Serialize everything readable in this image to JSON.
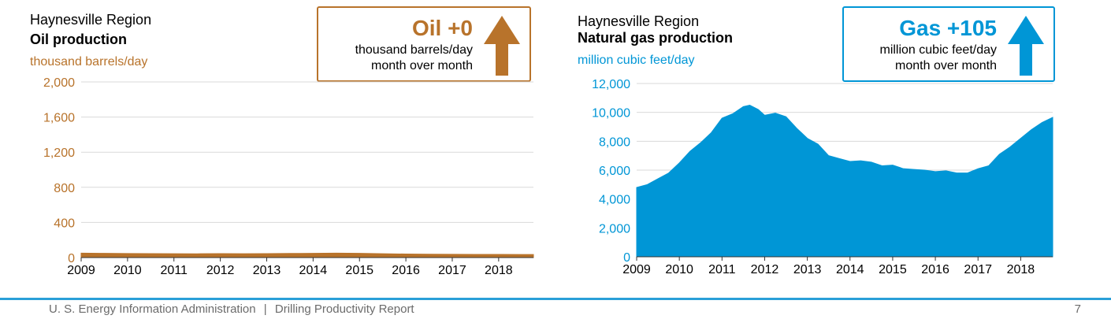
{
  "footer": {
    "agency": "U. S. Energy Information Administration",
    "separator": "|",
    "report": "Drilling Productivity Report",
    "page_number": "7",
    "line_color": "#2a9fd8"
  },
  "chart_data": [
    {
      "id": "oil",
      "type": "area",
      "region": "Haynesville Region",
      "title": "Oil production",
      "unit": "thousand barrels/day",
      "color": "#b8732b",
      "callout": {
        "value": "Oil +0",
        "line1": "thousand barrels/day",
        "line2": "month over month",
        "arrow": "up-arrow",
        "border_color": "#b8732b"
      },
      "yticks": [
        "2,000",
        "1,600",
        "1,200",
        "800",
        "400",
        "0"
      ],
      "ytick_values": [
        2000,
        1600,
        1200,
        800,
        400,
        0
      ],
      "ylim": [
        0,
        2000
      ],
      "xticks": [
        "2009",
        "2010",
        "2011",
        "2012",
        "2013",
        "2014",
        "2015",
        "2016",
        "2017",
        "2018"
      ],
      "xlim": [
        2009,
        2018.75
      ],
      "grid": true,
      "series": [
        {
          "x": [
            2009,
            2009.5,
            2010,
            2010.5,
            2011,
            2011.5,
            2012,
            2012.5,
            2013,
            2013.5,
            2014,
            2014.5,
            2015,
            2015.5,
            2016,
            2016.5,
            2017,
            2017.5,
            2018,
            2018.5,
            2018.75
          ],
          "values": [
            50,
            48,
            46,
            45,
            44,
            43,
            45,
            44,
            45,
            47,
            48,
            50,
            48,
            44,
            40,
            38,
            37,
            36,
            36,
            35,
            35
          ]
        }
      ]
    },
    {
      "id": "gas",
      "type": "area",
      "region": "Haynesville Region",
      "title": "Natural gas production",
      "unit": "million cubic feet/day",
      "color": "#0096d6",
      "callout": {
        "value": "Gas +105",
        "line1": "million cubic feet/day",
        "line2": "month over month",
        "arrow": "up-arrow",
        "border_color": "#0096d6"
      },
      "yticks": [
        "12,000",
        "10,000",
        "8,000",
        "6,000",
        "4,000",
        "2,000",
        "0"
      ],
      "ytick_values": [
        12000,
        10000,
        8000,
        6000,
        4000,
        2000,
        0
      ],
      "ylim": [
        0,
        12000
      ],
      "xticks": [
        "2009",
        "2010",
        "2011",
        "2012",
        "2013",
        "2014",
        "2015",
        "2016",
        "2017",
        "2018"
      ],
      "xlim": [
        2009,
        2018.75
      ],
      "grid": true,
      "series": [
        {
          "x": [
            2009,
            2009.25,
            2009.5,
            2009.75,
            2010,
            2010.25,
            2010.5,
            2010.75,
            2011,
            2011.25,
            2011.5,
            2011.65,
            2011.85,
            2012,
            2012.25,
            2012.5,
            2012.75,
            2013,
            2013.25,
            2013.5,
            2013.75,
            2014,
            2014.25,
            2014.5,
            2014.75,
            2015,
            2015.25,
            2015.5,
            2015.75,
            2016,
            2016.25,
            2016.5,
            2016.75,
            2017,
            2017.25,
            2017.5,
            2017.75,
            2018,
            2018.25,
            2018.5,
            2018.75
          ],
          "values": [
            4800,
            5000,
            5400,
            5800,
            6500,
            7300,
            7900,
            8600,
            9600,
            9900,
            10400,
            10500,
            10200,
            9800,
            9950,
            9700,
            8900,
            8200,
            7800,
            7000,
            6800,
            6600,
            6650,
            6550,
            6300,
            6350,
            6100,
            6050,
            6000,
            5900,
            5950,
            5800,
            5800,
            6100,
            6300,
            7100,
            7600,
            8200,
            8800,
            9300,
            9650
          ]
        }
      ]
    }
  ]
}
